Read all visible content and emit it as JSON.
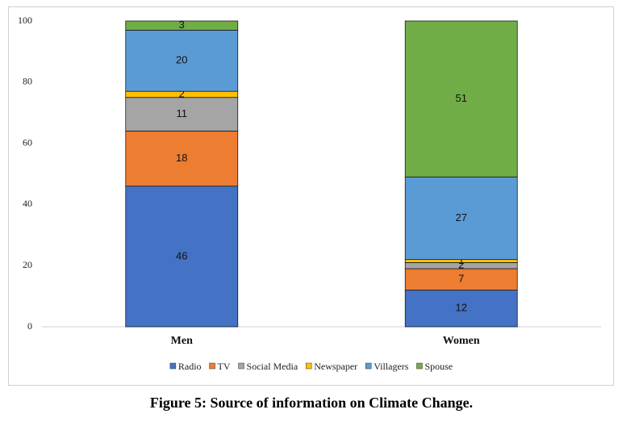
{
  "chart_data": {
    "type": "stacked_bar",
    "title": "Figure 5: Source of information on Climate Change.",
    "categories": [
      "Men",
      "Women"
    ],
    "series": [
      {
        "name": "Radio",
        "color": "#4472c4",
        "values": [
          46,
          12
        ]
      },
      {
        "name": "TV",
        "color": "#ed7d31",
        "values": [
          18,
          7
        ]
      },
      {
        "name": "Social Media",
        "color": "#a5a5a5",
        "values": [
          11,
          2
        ]
      },
      {
        "name": "Newspaper",
        "color": "#ffc000",
        "values": [
          2,
          1
        ]
      },
      {
        "name": "Villagers",
        "color": "#5b9bd5",
        "values": [
          20,
          27
        ]
      },
      {
        "name": "Spouse",
        "color": "#70ad47",
        "values": [
          3,
          51
        ]
      }
    ],
    "ylim": [
      0,
      100
    ],
    "yticks": [
      0,
      20,
      40,
      60,
      80,
      100
    ],
    "grid": false,
    "legend": "bottom"
  }
}
